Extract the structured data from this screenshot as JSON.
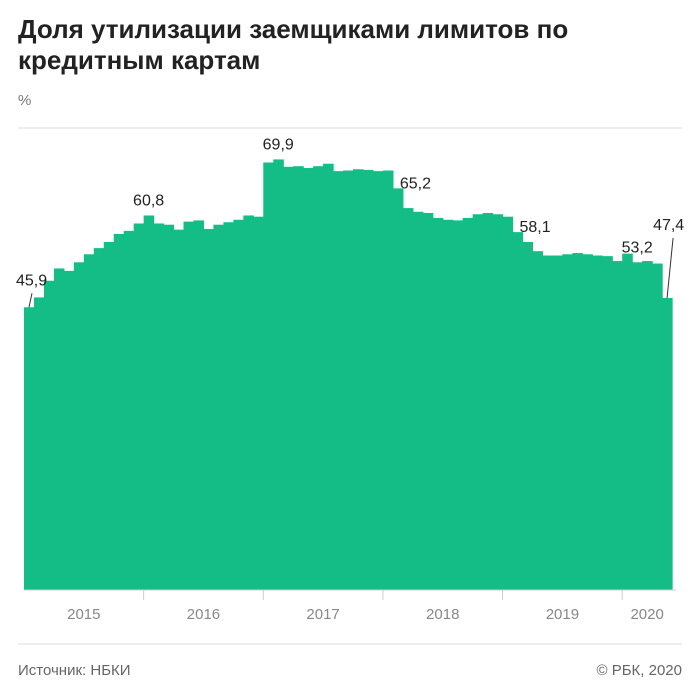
{
  "header": {
    "title": "Доля утилизации заемщиками лимитов по кредитным картам",
    "unit": "%"
  },
  "footer": {
    "source": "Источник: НБКИ",
    "copyright": "© РБК, 2020"
  },
  "colors": {
    "area": "#13bd85",
    "grid": "#dddddd",
    "axis": "#cccccc"
  },
  "chart_data": {
    "type": "area",
    "title": "Доля утилизации заемщиками лимитов по кредитным картам",
    "ylabel": "%",
    "ylim": [
      0,
      75
    ],
    "grid": true,
    "period_start": "2015-01",
    "years": [
      "2015",
      "2016",
      "2017",
      "2018",
      "2019",
      "2020"
    ],
    "values": [
      45.9,
      47.5,
      50.2,
      52.2,
      51.8,
      53.2,
      54.5,
      55.5,
      56.5,
      57.8,
      58.3,
      59.5,
      60.8,
      59.5,
      59.3,
      58.5,
      59.8,
      60.0,
      58.6,
      59.3,
      59.7,
      60.1,
      60.8,
      60.6,
      69.4,
      69.9,
      68.7,
      68.8,
      68.5,
      68.8,
      69.2,
      68.0,
      68.1,
      68.3,
      68.2,
      68.0,
      68.1,
      65.2,
      62.0,
      61.4,
      61.2,
      60.4,
      60.1,
      60.0,
      60.4,
      61.0,
      61.2,
      61.0,
      60.6,
      58.1,
      56.5,
      55.0,
      54.3,
      54.3,
      54.5,
      54.7,
      54.5,
      54.3,
      54.2,
      53.4,
      54.6,
      53.2,
      53.4,
      53.0,
      47.4
    ],
    "annotations": [
      {
        "label": "45,9",
        "index": 0
      },
      {
        "label": "60,8",
        "index": 12
      },
      {
        "label": "69,9",
        "index": 25
      },
      {
        "label": "65,2",
        "index": 37
      },
      {
        "label": "58,1",
        "index": 49
      },
      {
        "label": "53,2",
        "index": 61
      },
      {
        "label": "47,4",
        "index": 64
      }
    ]
  }
}
